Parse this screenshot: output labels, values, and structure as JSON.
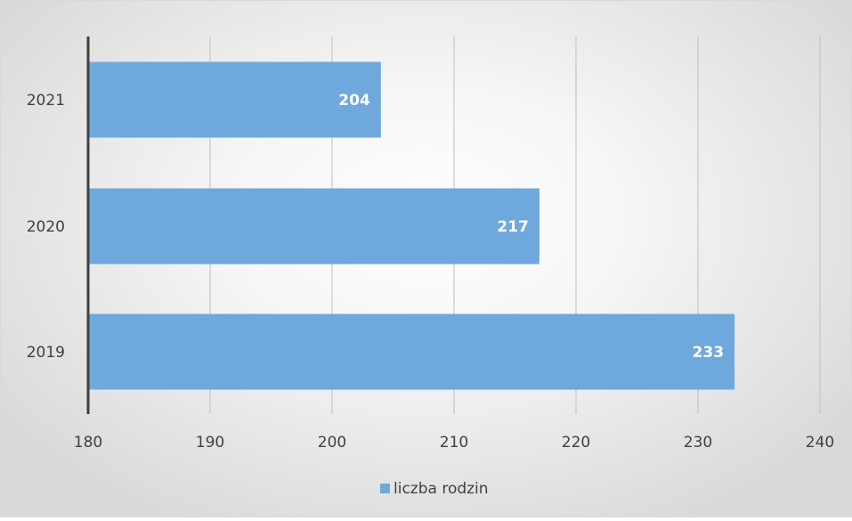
{
  "chart_data": {
    "type": "bar",
    "orientation": "horizontal",
    "categories": [
      "2019",
      "2020",
      "2021"
    ],
    "series": [
      {
        "name": "liczba rodzin",
        "values": [
          233,
          217,
          204
        ],
        "color": "#6fa8dc"
      }
    ],
    "xlim": [
      180,
      240
    ],
    "xticks": [
      180,
      190,
      200,
      210,
      220,
      230,
      240
    ],
    "grid": "vertical",
    "legend": "bottom",
    "data_labels": true
  }
}
